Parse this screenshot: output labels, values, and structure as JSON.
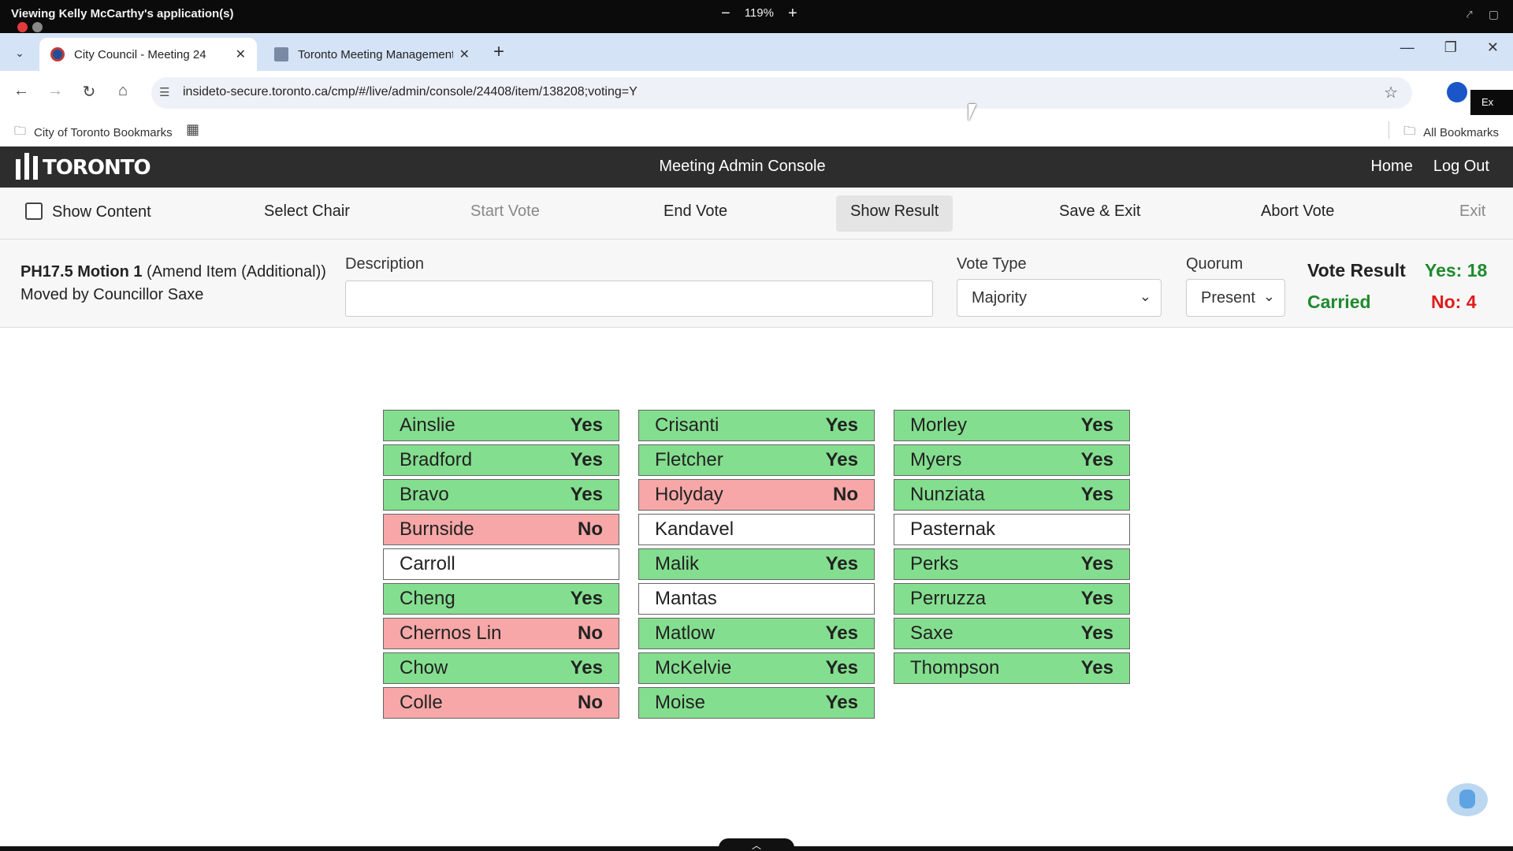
{
  "session": {
    "title": "Viewing Kelly McCarthy's application(s)",
    "zoom": "119%",
    "zoom_out": "−",
    "zoom_in": "+"
  },
  "browser": {
    "tabs": [
      {
        "label": "City Council - Meeting 24",
        "active": true
      },
      {
        "label": "Toronto Meeting Management",
        "active": false
      }
    ],
    "url": "insideto-secure.toronto.ca/cmp/#/live/admin/console/24408/item/138208;voting=Y",
    "bookmarks_left": "City of Toronto Bookmarks",
    "bookmarks_right": "All Bookmarks",
    "dark_chip": "Ex"
  },
  "header": {
    "logo_text": "TORONTO",
    "title": "Meeting Admin Console",
    "links": [
      "Home",
      "Log Out"
    ]
  },
  "actions": {
    "show_content": "Show Content",
    "select_chair": "Select Chair",
    "start_vote": "Start Vote",
    "end_vote": "End Vote",
    "show_result": "Show Result",
    "save_exit": "Save & Exit",
    "abort_vote": "Abort Vote",
    "exit": "Exit"
  },
  "motion": {
    "code": "PH17.5 Motion 1",
    "type": "(Amend Item (Additional))",
    "moved_by": "Moved by Councillor Saxe",
    "description_label": "Description",
    "description_value": "",
    "vote_type_label": "Vote Type",
    "vote_type_value": "Majority",
    "quorum_label": "Quorum",
    "quorum_value": "Present",
    "result_label": "Vote Result",
    "result_status": "Carried",
    "yes_count": "Yes: 18",
    "no_count": "No: 4"
  },
  "colors": {
    "yes_bg": "#84de8f",
    "no_bg": "#f7a7a7",
    "carried": "#1f8a2e",
    "no_text": "#e01b1b"
  },
  "members": [
    [
      {
        "name": "Ainslie",
        "vote": "Yes"
      },
      {
        "name": "Bradford",
        "vote": "Yes"
      },
      {
        "name": "Bravo",
        "vote": "Yes"
      },
      {
        "name": "Burnside",
        "vote": "No"
      },
      {
        "name": "Carroll",
        "vote": ""
      },
      {
        "name": "Cheng",
        "vote": "Yes"
      },
      {
        "name": "Chernos Lin",
        "vote": "No"
      },
      {
        "name": "Chow",
        "vote": "Yes"
      },
      {
        "name": "Colle",
        "vote": "No"
      }
    ],
    [
      {
        "name": "Crisanti",
        "vote": "Yes"
      },
      {
        "name": "Fletcher",
        "vote": "Yes"
      },
      {
        "name": "Holyday",
        "vote": "No"
      },
      {
        "name": "Kandavel",
        "vote": ""
      },
      {
        "name": "Malik",
        "vote": "Yes"
      },
      {
        "name": "Mantas",
        "vote": ""
      },
      {
        "name": "Matlow",
        "vote": "Yes"
      },
      {
        "name": "McKelvie",
        "vote": "Yes"
      },
      {
        "name": "Moise",
        "vote": "Yes"
      }
    ],
    [
      {
        "name": "Morley",
        "vote": "Yes"
      },
      {
        "name": "Myers",
        "vote": "Yes"
      },
      {
        "name": "Nunziata",
        "vote": "Yes"
      },
      {
        "name": "Pasternak",
        "vote": ""
      },
      {
        "name": "Perks",
        "vote": "Yes"
      },
      {
        "name": "Perruzza",
        "vote": "Yes"
      },
      {
        "name": "Saxe",
        "vote": "Yes"
      },
      {
        "name": "Thompson",
        "vote": "Yes"
      }
    ]
  ]
}
